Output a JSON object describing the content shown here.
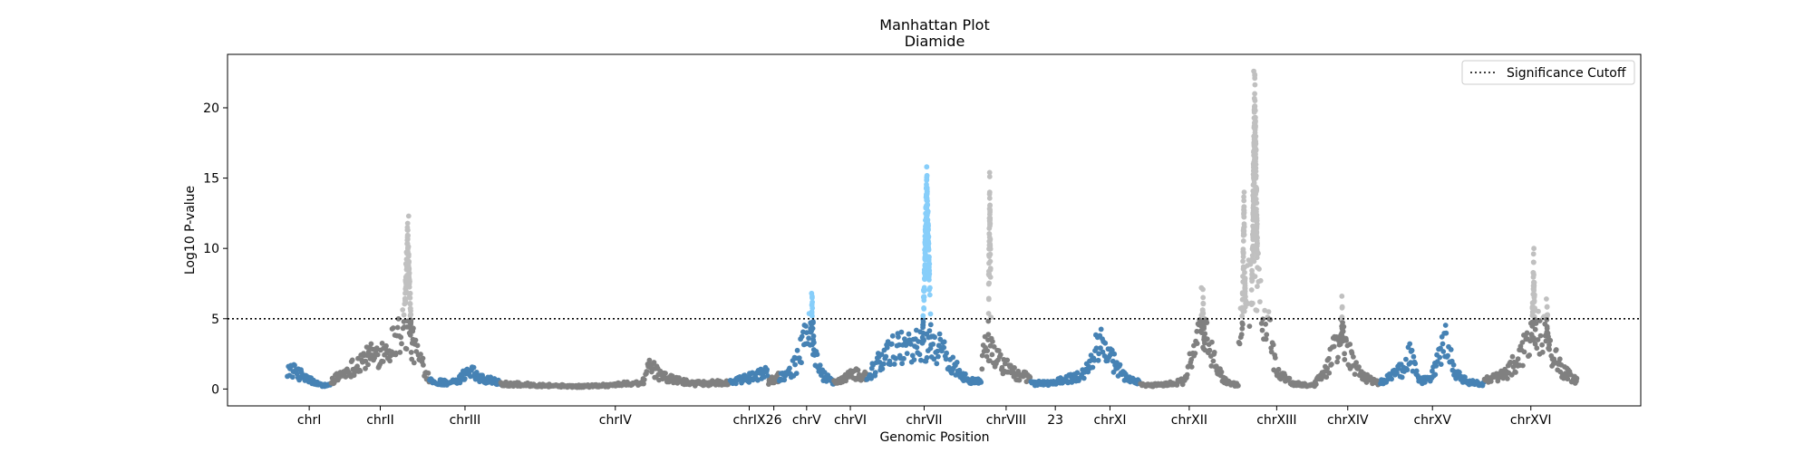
{
  "chart_data": {
    "type": "scatter",
    "title": "Manhattan Plot",
    "subtitle": "Diamide",
    "xlabel": "Genomic Position",
    "ylabel": "Log10 P-value",
    "ylim": [
      -1.2,
      23.8
    ],
    "yticks": [
      0,
      5,
      10,
      15,
      20
    ],
    "grid": false,
    "legend_position": "top-right",
    "cutoff": {
      "label": "Significance Cutoff",
      "value": 5
    },
    "colors": {
      "blue": "#4682b4",
      "dark_gray": "#808080",
      "light_gray": "#c0c0c0",
      "light_blue": "#87cefa"
    },
    "chromosomes": [
      {
        "name": "chrI",
        "start": 0.0,
        "end": 0.8,
        "color": "blue",
        "profile": [
          [
            0.0,
            1.6
          ],
          [
            0.2,
            1.2
          ],
          [
            0.4,
            0.7
          ],
          [
            0.6,
            0.3
          ],
          [
            0.8,
            0.3
          ]
        ]
      },
      {
        "name": "chrII",
        "start": 0.8,
        "end": 2.6,
        "color": "dark_gray",
        "profile": [
          [
            0.8,
            0.6
          ],
          [
            1.1,
            1.4
          ],
          [
            1.4,
            2.3
          ],
          [
            1.7,
            2.8
          ],
          [
            1.9,
            3.4
          ],
          [
            2.0,
            4.0
          ],
          [
            2.15,
            5.0
          ],
          [
            2.25,
            3.8
          ],
          [
            2.4,
            2.5
          ],
          [
            2.6,
            0.8
          ]
        ],
        "sig_color": "light_gray",
        "peaks": [
          {
            "x": 2.2,
            "height": 12.3,
            "width": 0.1,
            "n": 110
          }
        ]
      },
      {
        "name": "chrIII",
        "start": 2.6,
        "end": 3.9,
        "color": "blue",
        "profile": [
          [
            2.6,
            0.6
          ],
          [
            2.9,
            0.5
          ],
          [
            3.1,
            0.5
          ],
          [
            3.35,
            1.6
          ],
          [
            3.5,
            0.9
          ],
          [
            3.9,
            0.5
          ]
        ]
      },
      {
        "name": "chrIV",
        "start": 3.9,
        "end": 8.1,
        "color": "dark_gray",
        "profile": [
          [
            3.9,
            0.4
          ],
          [
            4.6,
            0.3
          ],
          [
            5.3,
            0.2
          ],
          [
            5.9,
            0.3
          ],
          [
            6.5,
            0.5
          ],
          [
            6.65,
            1.9
          ],
          [
            6.8,
            1.0
          ],
          [
            7.4,
            0.4
          ],
          [
            8.1,
            0.5
          ]
        ]
      },
      {
        "name": "chrIX",
        "start": 8.1,
        "end": 8.8,
        "color": "blue",
        "profile": [
          [
            8.1,
            0.5
          ],
          [
            8.4,
            0.8
          ],
          [
            8.8,
            1.3
          ]
        ]
      },
      {
        "name": "26",
        "start": 8.8,
        "end": 9.0,
        "color": "dark_gray",
        "profile": [
          [
            8.8,
            0.6
          ],
          [
            9.0,
            0.9
          ]
        ]
      },
      {
        "name": "chrV",
        "start": 9.0,
        "end": 10.0,
        "color": "blue",
        "profile": [
          [
            9.0,
            0.8
          ],
          [
            9.3,
            1.8
          ],
          [
            9.45,
            3.5
          ],
          [
            9.55,
            4.5
          ],
          [
            9.65,
            2.8
          ],
          [
            9.8,
            1.0
          ],
          [
            10.0,
            0.5
          ]
        ],
        "sig_color": "light_blue",
        "peaks": [
          {
            "x": 9.6,
            "height": 6.8,
            "width": 0.06,
            "n": 25
          }
        ]
      },
      {
        "name": "chrVI",
        "start": 10.0,
        "end": 10.6,
        "color": "dark_gray",
        "profile": [
          [
            10.0,
            0.5
          ],
          [
            10.2,
            0.8
          ],
          [
            10.4,
            1.2
          ],
          [
            10.6,
            1.0
          ]
        ]
      },
      {
        "name": "chrVII",
        "start": 10.6,
        "end": 12.7,
        "color": "blue",
        "profile": [
          [
            10.6,
            0.8
          ],
          [
            10.8,
            2.0
          ],
          [
            11.0,
            2.8
          ],
          [
            11.2,
            3.2
          ],
          [
            11.4,
            3.5
          ],
          [
            11.6,
            3.2
          ],
          [
            11.8,
            3.5
          ],
          [
            11.95,
            3.0
          ],
          [
            12.1,
            2.2
          ],
          [
            12.3,
            1.3
          ],
          [
            12.5,
            0.7
          ],
          [
            12.7,
            0.5
          ]
        ],
        "sig_color": "light_blue",
        "peaks": [
          {
            "x": 11.7,
            "height": 15.8,
            "width": 0.1,
            "n": 160
          }
        ]
      },
      {
        "name": "chrVIII",
        "start": 12.7,
        "end": 13.6,
        "color": "dark_gray",
        "profile": [
          [
            12.7,
            2.2
          ],
          [
            12.8,
            3.4
          ],
          [
            12.9,
            2.8
          ],
          [
            13.1,
            1.9
          ],
          [
            13.3,
            1.2
          ],
          [
            13.6,
            0.8
          ]
        ],
        "sig_color": "light_gray",
        "peaks": [
          {
            "x": 12.85,
            "height": 15.4,
            "width": 0.035,
            "n": 60
          }
        ]
      },
      {
        "name": "23",
        "start": 13.6,
        "end": 14.5,
        "color": "blue",
        "profile": [
          [
            13.6,
            0.4
          ],
          [
            14.0,
            0.5
          ],
          [
            14.3,
            0.8
          ],
          [
            14.5,
            1.0
          ]
        ]
      },
      {
        "name": "chrXI",
        "start": 14.5,
        "end": 15.6,
        "color": "blue",
        "profile": [
          [
            14.5,
            0.8
          ],
          [
            14.7,
            2.0
          ],
          [
            14.85,
            3.6
          ],
          [
            15.0,
            2.8
          ],
          [
            15.2,
            1.5
          ],
          [
            15.4,
            0.7
          ],
          [
            15.6,
            0.5
          ]
        ]
      },
      {
        "name": "chrXII",
        "start": 15.6,
        "end": 17.4,
        "color": "dark_gray",
        "profile": [
          [
            15.6,
            0.3
          ],
          [
            16.0,
            0.3
          ],
          [
            16.4,
            0.6
          ],
          [
            16.55,
            2.5
          ],
          [
            16.7,
            4.6
          ],
          [
            16.85,
            3.5
          ],
          [
            17.0,
            1.5
          ],
          [
            17.2,
            0.5
          ],
          [
            17.4,
            0.3
          ]
        ],
        "sig_color": "light_gray",
        "peaks": [
          {
            "x": 16.75,
            "height": 7.2,
            "width": 0.05,
            "n": 30
          }
        ]
      },
      {
        "name": "chrXIII",
        "start": 17.4,
        "end": 18.8,
        "color": "dark_gray",
        "profile": [
          [
            17.4,
            3.5
          ],
          [
            17.55,
            7.0
          ],
          [
            17.75,
            8.0
          ],
          [
            17.95,
            4.5
          ],
          [
            18.1,
            1.3
          ],
          [
            18.4,
            0.4
          ],
          [
            18.8,
            0.3
          ]
        ],
        "sig_color": "light_gray",
        "peaks": [
          {
            "x": 17.7,
            "height": 22.6,
            "width": 0.08,
            "n": 200
          },
          {
            "x": 17.5,
            "height": 14.0,
            "width": 0.05,
            "n": 60
          }
        ]
      },
      {
        "name": "chrXIV",
        "start": 18.8,
        "end": 20.0,
        "color": "dark_gray",
        "profile": [
          [
            18.8,
            0.4
          ],
          [
            19.0,
            1.4
          ],
          [
            19.15,
            3.0
          ],
          [
            19.3,
            4.2
          ],
          [
            19.45,
            2.5
          ],
          [
            19.65,
            1.0
          ],
          [
            20.0,
            0.4
          ]
        ],
        "sig_color": "light_gray",
        "peaks": [
          {
            "x": 19.3,
            "height": 6.6,
            "width": 0.04,
            "n": 20
          }
        ]
      },
      {
        "name": "chrXV",
        "start": 20.0,
        "end": 21.9,
        "color": "blue",
        "profile": [
          [
            20.0,
            0.5
          ],
          [
            20.4,
            1.5
          ],
          [
            20.55,
            2.7
          ],
          [
            20.7,
            0.6
          ],
          [
            20.9,
            0.7
          ],
          [
            21.2,
            3.7
          ],
          [
            21.35,
            1.2
          ],
          [
            21.6,
            0.5
          ],
          [
            21.9,
            0.4
          ]
        ]
      },
      {
        "name": "chrXVI",
        "start": 21.9,
        "end": 23.6,
        "color": "dark_gray",
        "profile": [
          [
            21.9,
            0.6
          ],
          [
            22.3,
            1.2
          ],
          [
            22.6,
            2.8
          ],
          [
            22.75,
            4.0
          ],
          [
            22.95,
            4.5
          ],
          [
            23.1,
            3.2
          ],
          [
            23.3,
            1.5
          ],
          [
            23.6,
            0.6
          ]
        ],
        "sig_color": "light_gray",
        "peaks": [
          {
            "x": 22.8,
            "height": 10.0,
            "width": 0.05,
            "n": 45
          },
          {
            "x": 23.05,
            "height": 6.4,
            "width": 0.04,
            "n": 15
          }
        ]
      }
    ],
    "xticks": [
      {
        "label": "chrI",
        "x": 0.4
      },
      {
        "label": "chrII",
        "x": 1.7
      },
      {
        "label": "chrIII",
        "x": 3.25
      },
      {
        "label": "chrIV",
        "x": 6.0
      },
      {
        "label": "chrIX",
        "x": 8.45
      },
      {
        "label": "26",
        "x": 8.9
      },
      {
        "label": "chrV",
        "x": 9.5
      },
      {
        "label": "chrVI",
        "x": 10.3
      },
      {
        "label": "chrVII",
        "x": 11.65
      },
      {
        "label": "chrVIII",
        "x": 13.15
      },
      {
        "label": "23",
        "x": 14.05
      },
      {
        "label": "chrXI",
        "x": 15.05
      },
      {
        "label": "chrXII",
        "x": 16.5
      },
      {
        "label": "chrXIII",
        "x": 18.1
      },
      {
        "label": "chrXIV",
        "x": 19.4
      },
      {
        "label": "chrXV",
        "x": 20.95
      },
      {
        "label": "chrXVI",
        "x": 22.75
      }
    ]
  }
}
